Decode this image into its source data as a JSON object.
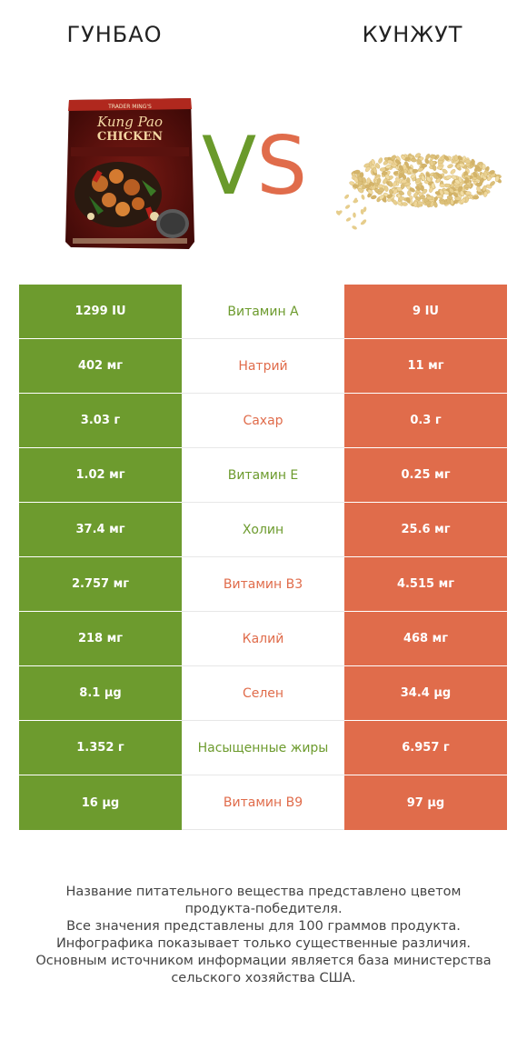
{
  "header": {
    "left_title": "ГУНБАО",
    "right_title": "КУНЖУТ",
    "vs_v": "V",
    "vs_s": "S"
  },
  "images": {
    "left": {
      "brand": "TRADER MING'S",
      "name_line1": "Kung Pao",
      "name_line2": "CHICKEN"
    },
    "right": {
      "icon": "sesame-seeds-image"
    }
  },
  "colors": {
    "left_winner": "#6d9b2e",
    "right_winner": "#e06c4b"
  },
  "rows": [
    {
      "left": "1299 IU",
      "label": "Витамин A",
      "right": "9 IU",
      "winner": "left"
    },
    {
      "left": "402 мг",
      "label": "Натрий",
      "right": "11 мг",
      "winner": "right"
    },
    {
      "left": "3.03 г",
      "label": "Сахар",
      "right": "0.3 г",
      "winner": "right"
    },
    {
      "left": "1.02 мг",
      "label": "Витамин E",
      "right": "0.25 мг",
      "winner": "left"
    },
    {
      "left": "37.4 мг",
      "label": "Холин",
      "right": "25.6 мг",
      "winner": "left"
    },
    {
      "left": "2.757 мг",
      "label": "Витамин B3",
      "right": "4.515 мг",
      "winner": "right"
    },
    {
      "left": "218 мг",
      "label": "Калий",
      "right": "468 мг",
      "winner": "right"
    },
    {
      "left": "8.1 µg",
      "label": "Селен",
      "right": "34.4 µg",
      "winner": "right"
    },
    {
      "left": "1.352 г",
      "label": "Насыщенные жиры",
      "right": "6.957 г",
      "winner": "left"
    },
    {
      "left": "16 µg",
      "label": "Витамин B9",
      "right": "97 µg",
      "winner": "right"
    }
  ],
  "footer": {
    "line1": "Название питательного вещества представлено цветом",
    "line2": "продукта-победителя.",
    "line3": "Все значения представлены для 100 граммов продукта.",
    "line4": "Инфографика показывает только существенные различия.",
    "line5": "Основным источником информации является база министерства",
    "line6": "сельского хозяйства США."
  }
}
